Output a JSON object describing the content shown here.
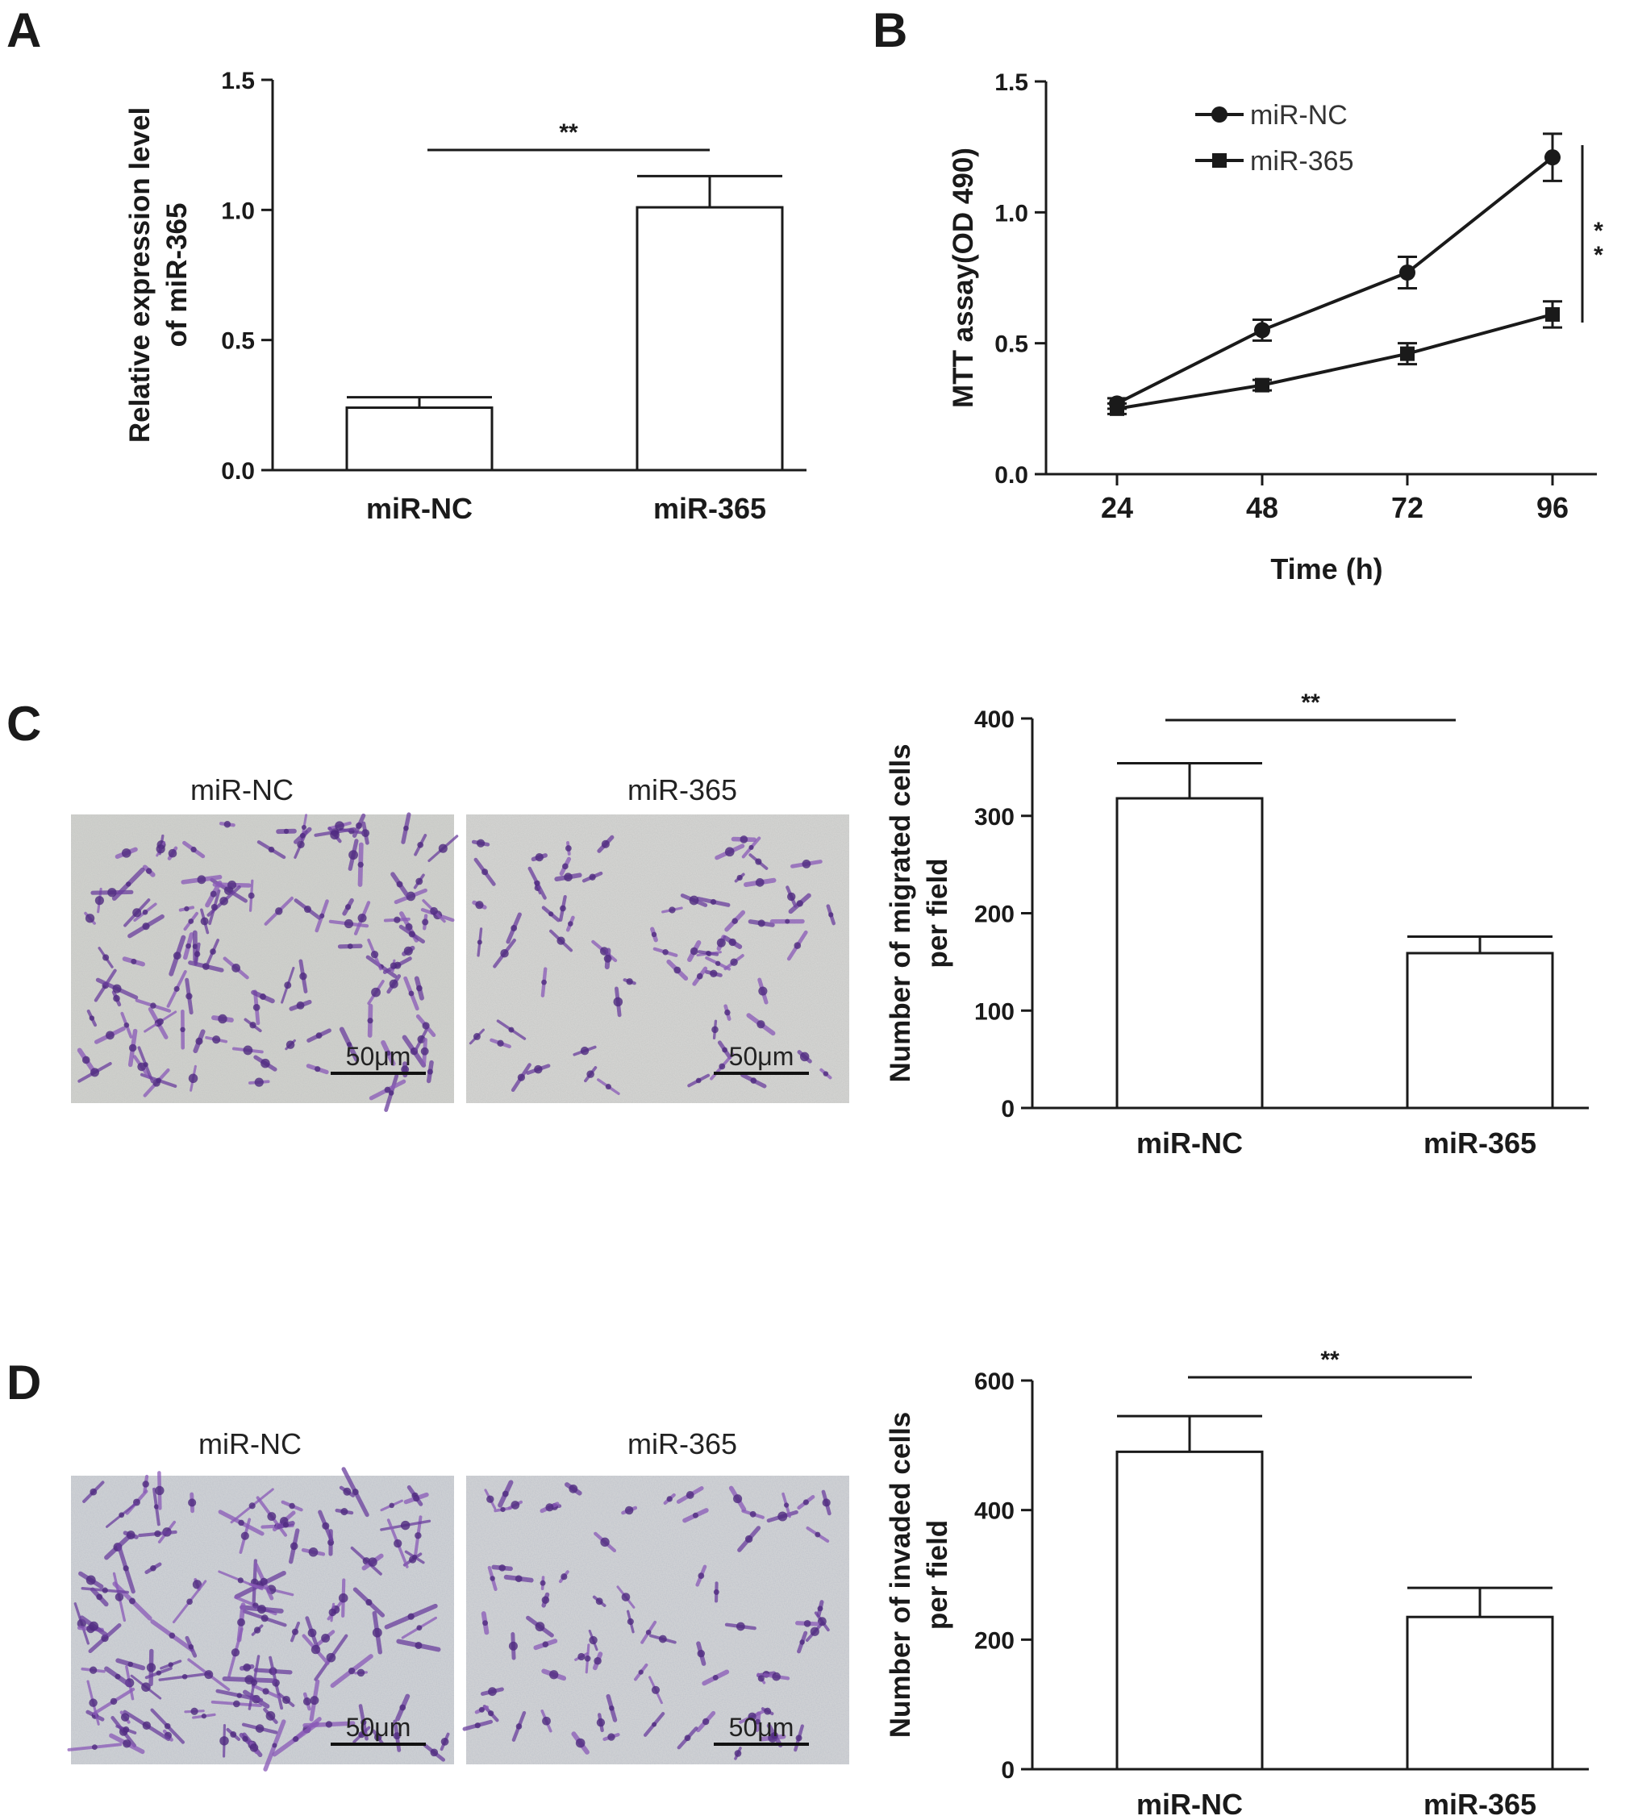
{
  "panels": {
    "A": "A",
    "B": "B",
    "C": "C",
    "D": "D"
  },
  "micrograph_labels": {
    "C": [
      "miR-NC",
      "miR-365"
    ],
    "D": [
      "miR-NC",
      "miR-365"
    ],
    "scale": "50μm"
  },
  "colors": {
    "axis": "#1a1a1a",
    "bar_fill": "#ffffff",
    "stain_purple": "#6b3f9e",
    "background_field": "#c9c9c6"
  },
  "chart_data": [
    {
      "panel": "A",
      "type": "bar",
      "categories": [
        "miR-NC",
        "miR-365"
      ],
      "values": [
        0.24,
        1.01
      ],
      "errors": [
        0.04,
        0.12
      ],
      "ylabel": [
        "Relative expression level",
        "of miR-365"
      ],
      "ylim": [
        0,
        1.5
      ],
      "yticks": [
        "0.0",
        "0.5",
        "1.0",
        "1.5"
      ],
      "significance": "**"
    },
    {
      "panel": "B",
      "type": "line",
      "x": [
        "24",
        "48",
        "72",
        "96"
      ],
      "series": [
        {
          "name": "miR-NC",
          "marker": "circle",
          "values": [
            0.27,
            0.55,
            0.77,
            1.21
          ],
          "errors": [
            0.02,
            0.04,
            0.06,
            0.09
          ]
        },
        {
          "name": "miR-365",
          "marker": "square",
          "values": [
            0.25,
            0.34,
            0.46,
            0.61
          ],
          "errors": [
            0.02,
            0.02,
            0.04,
            0.05
          ]
        }
      ],
      "xlabel": "Time (h)",
      "ylabel": "MTT assay(OD 490)",
      "ylim": [
        0,
        1.5
      ],
      "yticks": [
        "0.0",
        "0.5",
        "1.0",
        "1.5"
      ],
      "legend": "top-left",
      "significance": "**"
    },
    {
      "panel": "C",
      "type": "bar",
      "categories": [
        "miR-NC",
        "miR-365"
      ],
      "values": [
        318,
        159
      ],
      "errors": [
        36,
        17
      ],
      "ylabel": [
        "Number of migrated cells",
        "per field"
      ],
      "ylim": [
        0,
        400
      ],
      "yticks": [
        "0",
        "100",
        "200",
        "300",
        "400"
      ],
      "significance": "**"
    },
    {
      "panel": "D",
      "type": "bar",
      "categories": [
        "miR-NC",
        "miR-365"
      ],
      "values": [
        490,
        235
      ],
      "errors": [
        55,
        45
      ],
      "ylabel": [
        "Number of invaded cells",
        "per field"
      ],
      "ylim": [
        0,
        600
      ],
      "yticks": [
        "0",
        "200",
        "400",
        "600"
      ],
      "significance": "**"
    }
  ]
}
